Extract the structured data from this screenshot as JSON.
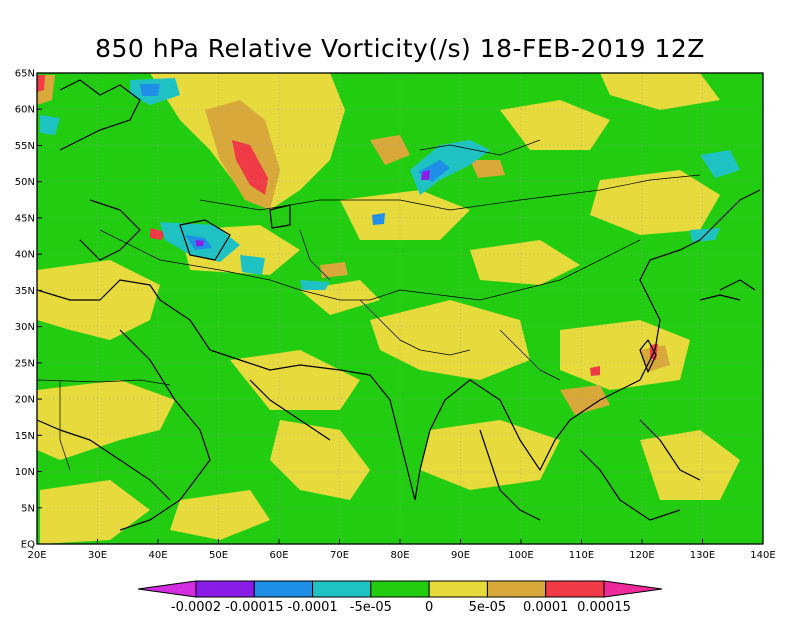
{
  "title": "850 hPa Relative Vorticity(/s) 18-FEB-2019 12Z",
  "map": {
    "lon_range": [
      20,
      140
    ],
    "lat_range": [
      0,
      65
    ],
    "lat_ticks": [
      "EQ",
      "5N",
      "10N",
      "15N",
      "20N",
      "25N",
      "30N",
      "35N",
      "40N",
      "45N",
      "50N",
      "55N",
      "60N",
      "65N"
    ],
    "lon_ticks": [
      "20E",
      "30E",
      "40E",
      "50E",
      "60E",
      "70E",
      "80E",
      "90E",
      "100E",
      "110E",
      "120E",
      "130E",
      "140E"
    ],
    "gridlines": true,
    "background_color": "#22cc11"
  },
  "colorbar": {
    "labels": [
      "-0.0002",
      "-0.00015",
      "-0.0001",
      "-5e-05",
      "0",
      "5e-05",
      "0.0001",
      "0.00015"
    ],
    "colors": [
      "#d22ee0",
      "#8a1ee6",
      "#1e8ee6",
      "#1ec2c2",
      "#22cc11",
      "#e6da3c",
      "#d8a83a",
      "#f03a46",
      "#ee2a9a"
    ]
  }
}
